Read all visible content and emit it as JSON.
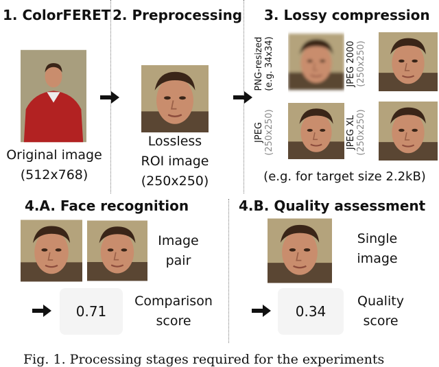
{
  "sections": {
    "s1_title": "1. ColorFERET",
    "s2_title": "2. Preprocessing",
    "s3_title": "3. Lossy compression",
    "s4a_title": "4.A. Face recognition",
    "s4b_title": "4.B. Quality assessment"
  },
  "original": {
    "line1": "Original image",
    "line2": "(512x768)"
  },
  "roi": {
    "line1": "Lossless",
    "line2": "ROI image",
    "line3": "(250x250)"
  },
  "compression": {
    "png": {
      "label": "PNG-resized",
      "sub": "(e.g. 34x34)"
    },
    "jpeg2000": {
      "label": "JPEG 2000",
      "sub": "(250x250)"
    },
    "jpeg": {
      "label": "JPEG",
      "sub": "(250x250)"
    },
    "jpegxl": {
      "label": "JPEG XL",
      "sub": "(250x250)"
    },
    "note": "(e.g. for target size 2.2kB)"
  },
  "recognition": {
    "pair_line1": "Image",
    "pair_line2": "pair",
    "score": "0.71",
    "score_line1": "Comparison",
    "score_line2": "score"
  },
  "quality": {
    "single_line1": "Single",
    "single_line2": "image",
    "score": "0.34",
    "score_line1": "Quality",
    "score_line2": "score"
  },
  "caption": "Fig. 1. Processing stages required for the experiments"
}
